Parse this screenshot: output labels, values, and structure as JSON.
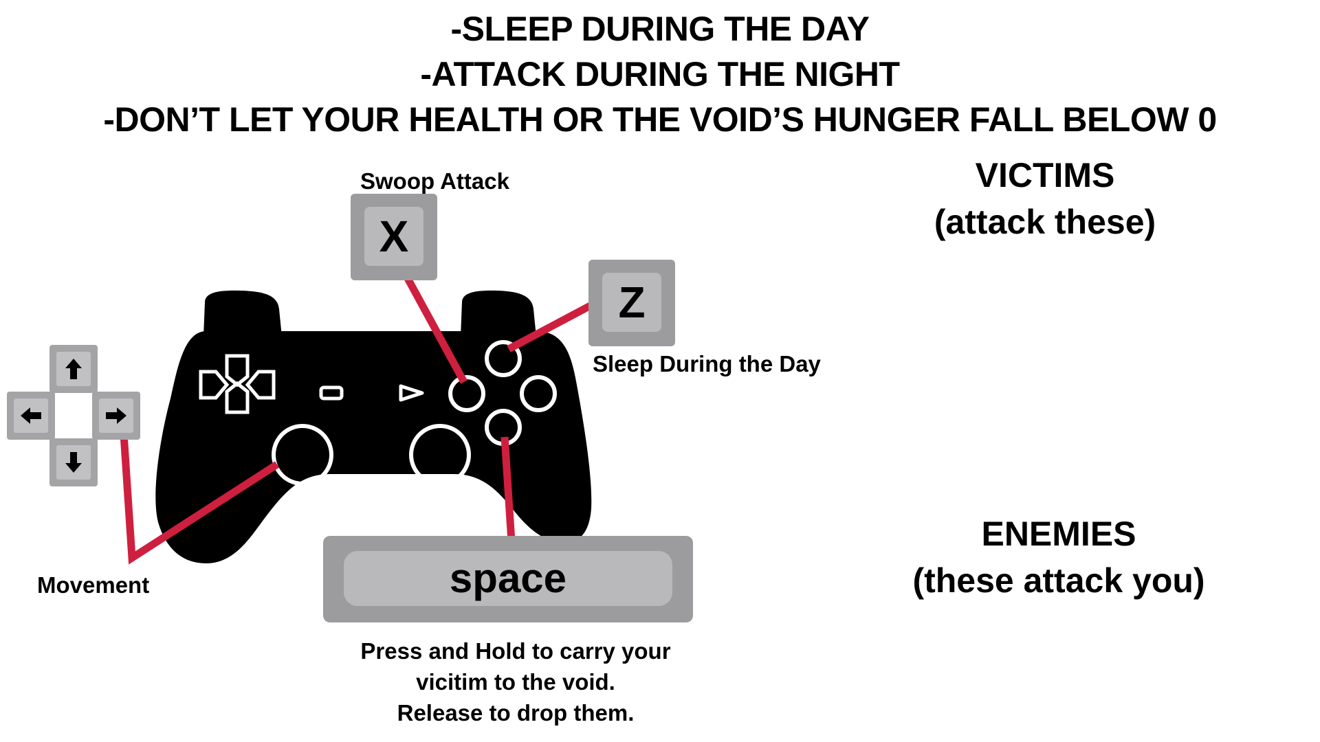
{
  "rules": [
    "-SLEEP DURING THE DAY",
    "-ATTACK DURING THE NIGHT",
    "-DON’T LET YOUR HEALTH OR THE VOID’S HUNGER FALL BELOW 0"
  ],
  "controls": {
    "swoop": {
      "label": "Swoop Attack",
      "key": "X"
    },
    "sleep": {
      "label": "Sleep During the Day",
      "key": "Z"
    },
    "movement": {
      "label": "Movement",
      "keys": [
        "up-arrow-icon",
        "left-arrow-icon",
        "right-arrow-icon",
        "down-arrow-icon"
      ]
    },
    "carry": {
      "key": "space",
      "instructions": [
        "Press and Hold to carry your",
        "vicitim to the void.",
        "Release to drop them."
      ]
    }
  },
  "victims": {
    "title": "VICTIMS",
    "subtitle": "(attack these)"
  },
  "enemies": {
    "title": "ENEMIES",
    "subtitle": "(these attack you)"
  },
  "colors": {
    "controller": "#000000",
    "connector_line": "#cf1f3f",
    "key_outer": "#9c9c9e",
    "key_inner": "#b9b9bb",
    "text": "#000000",
    "background": "#ffffff"
  },
  "icons": [
    "gamepad-icon",
    "dpad-icon",
    "face-buttons-icon",
    "analog-stick-icon"
  ]
}
